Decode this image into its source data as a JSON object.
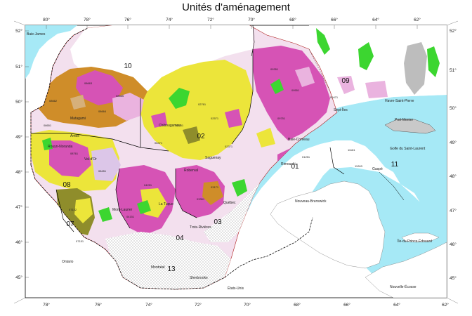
{
  "title": "Unités d'aménagement",
  "lon_labels_top": [
    "80°",
    "78°",
    "76°",
    "74°",
    "72°",
    "70°",
    "68°",
    "66°",
    "64°",
    "62°"
  ],
  "lon_labels_bottom": [
    "78°",
    "76°",
    "74°",
    "72°",
    "70°",
    "68°",
    "66°",
    "64°",
    "62°"
  ],
  "lat_labels_left": [
    "52°",
    "51°",
    "50°",
    "49°",
    "48°",
    "47°",
    "46°",
    "45°"
  ],
  "lat_labels_right": [
    "52°",
    "51°",
    "50°",
    "49°",
    "48°",
    "47°",
    "46°",
    "45°"
  ],
  "regions": {
    "r10": "10",
    "r09": "09",
    "r02": "02",
    "r08": "08",
    "r07": "07",
    "r04": "04",
    "r03": "03",
    "r01": "01",
    "r11": "11",
    "r13": "13"
  },
  "places": {
    "baie_james": "Baie-James",
    "ontario": "Ontario",
    "etats_unis": "États-Unis",
    "nouveau_brunswick": "Nouveau-Brunswick",
    "ile_pe": "Île-du-Prince-Édouard",
    "nouvelle_ecosse": "Nouvelle-Écosse",
    "golfe": "Golfe du Saint-Laurent",
    "havre_st_pierre": "Havre-Saint-Pierre",
    "port_menier": "Port-Menier",
    "saguenay": "Saguenay",
    "baie_comeau": "Baie-Comeau",
    "sept_iles": "Sept-Îles",
    "rouyn": "Rouyn-Noranda",
    "val_dor": "Val-d'Or",
    "trois_rivieres": "Trois-Rivières",
    "montreal": "Montréal",
    "sherbrooke": "Sherbrooke",
    "quebec": "Québec",
    "rimouski": "Rimouski",
    "gaspe": "Gaspé",
    "chibougamau": "Chibougamau",
    "roberval": "Roberval",
    "mont_laurier": "Mont-Laurier",
    "la_tuque": "La Tuque",
    "matagami": "Matagami",
    "amos": "Amos"
  },
  "codes": {
    "c1": "08662",
    "c2": "08663",
    "c3": "08664",
    "c4": "08665",
    "c5": "08651",
    "c6": "02751",
    "c7": "02761",
    "c8": "02371",
    "c9": "09351",
    "c10": "09551",
    "c11": "09751",
    "c12": "04251",
    "c13": "04151",
    "c14": "03351",
    "c15": "03171",
    "c16": "07152",
    "c17": "07151",
    "c18": "08451",
    "c19": "11161",
    "c20": "11263",
    "c21": "01251",
    "c22": "08761",
    "c23": "02571",
    "c24": "06471",
    "c25": "09471"
  },
  "colors": {
    "water": "#a6e9f6",
    "background": "#ffffff",
    "land_outside": "#ffffff",
    "unit_yellow": "#ece53a",
    "unit_pink": "#d653b5",
    "unit_orange": "#cf8d29",
    "unit_olive": "#8f8d2b",
    "unit_green": "#3cd630",
    "unit_lightpink": "#eab3df",
    "unit_lavender": "#dcc6e8",
    "unit_tan": "#d6b07a",
    "unit_grey": "#bdbdbd",
    "border": "#000000",
    "dashed_border": "#333333"
  }
}
